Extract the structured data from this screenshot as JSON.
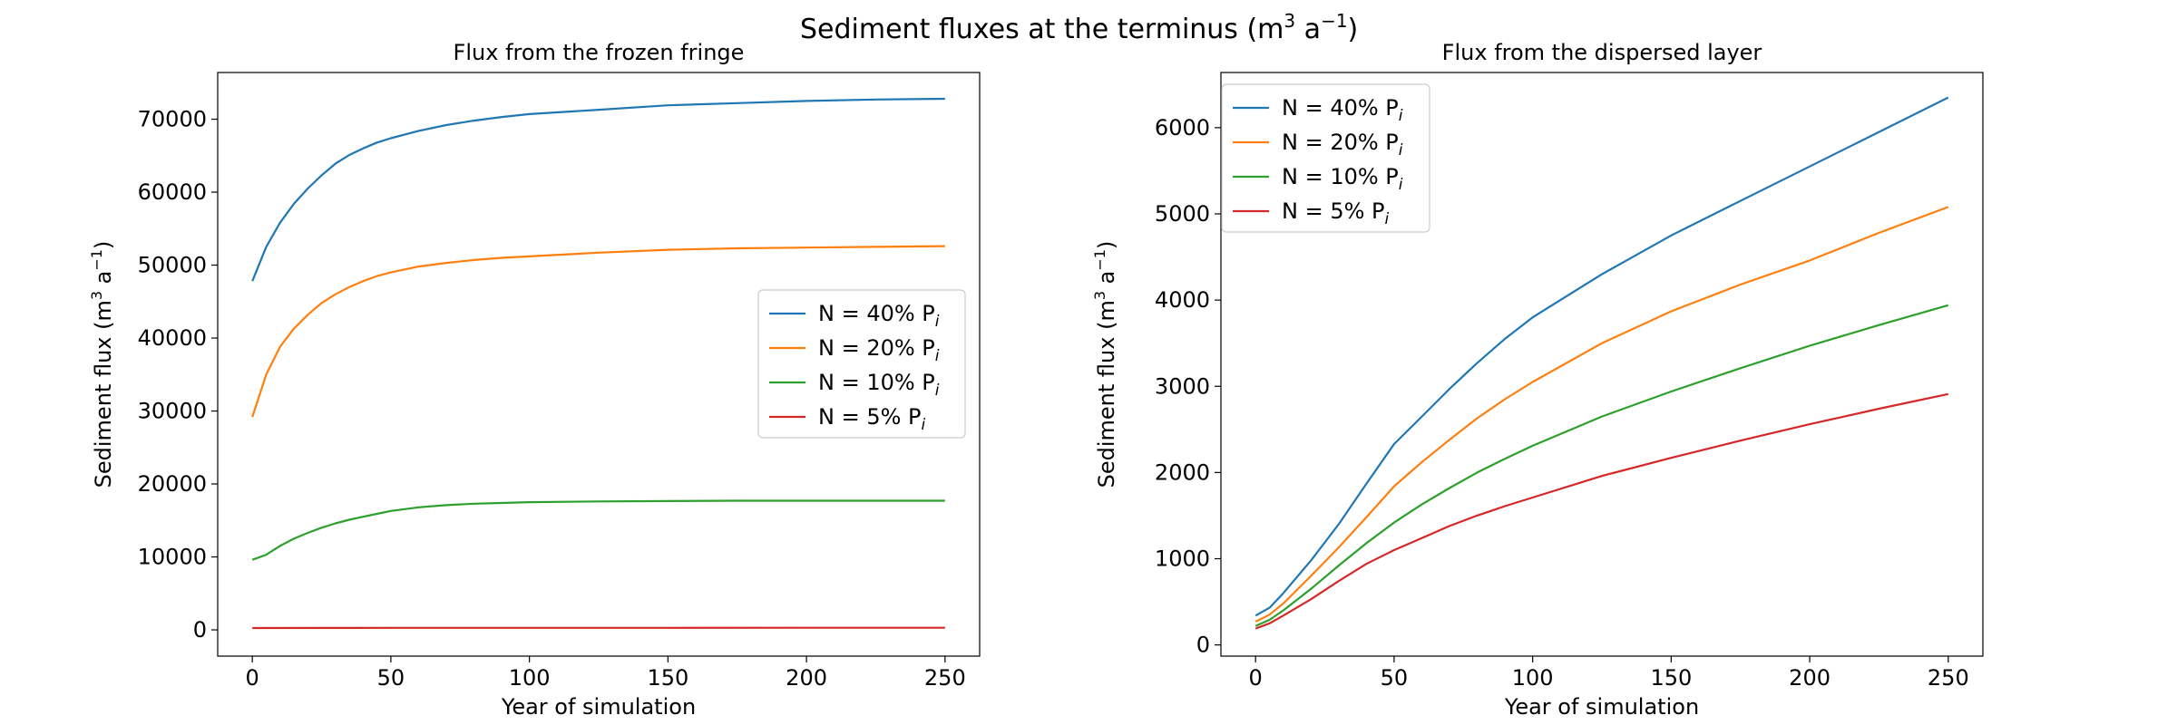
{
  "figure": {
    "title_main": "Sediment fluxes at the terminus (m",
    "title_sup1": "3",
    "title_mid": " a",
    "title_sup2": "−1",
    "title_end": ")"
  },
  "chart_data": [
    {
      "type": "line",
      "title": "Flux from the frozen fringe",
      "xlabel": "Year of simulation",
      "ylabel": {
        "pre": "Sediment flux (m",
        "sup1": "3",
        "mid": " a",
        "sup2": "−1",
        "post": ")"
      },
      "xlim": [
        -12.5,
        262.5
      ],
      "ylim": [
        -3600,
        76400
      ],
      "xticks": [
        0,
        50,
        100,
        150,
        200,
        250
      ],
      "yticks": [
        0,
        10000,
        20000,
        30000,
        40000,
        50000,
        60000,
        70000
      ],
      "grid": false,
      "legend_position": "center-right",
      "series": [
        {
          "name": "N = 40% P",
          "color": "#1f77b4",
          "x": [
            0,
            5,
            10,
            15,
            20,
            25,
            30,
            35,
            40,
            45,
            50,
            60,
            70,
            80,
            90,
            100,
            125,
            150,
            175,
            200,
            225,
            250
          ],
          "y": [
            47800,
            52500,
            55800,
            58400,
            60500,
            62300,
            63900,
            65100,
            66000,
            66800,
            67400,
            68400,
            69200,
            69800,
            70300,
            70700,
            71300,
            71900,
            72200,
            72500,
            72700,
            72800
          ]
        },
        {
          "name": "N = 20% P",
          "color": "#ff7f0e",
          "x": [
            0,
            5,
            10,
            15,
            20,
            25,
            30,
            35,
            40,
            45,
            50,
            60,
            70,
            80,
            90,
            100,
            125,
            150,
            175,
            200,
            225,
            250
          ],
          "y": [
            29200,
            35000,
            38800,
            41300,
            43200,
            44800,
            46000,
            47000,
            47800,
            48500,
            49000,
            49800,
            50300,
            50700,
            51000,
            51200,
            51700,
            52100,
            52300,
            52400,
            52500,
            52600
          ]
        },
        {
          "name": "N = 10% P",
          "color": "#2ca02c",
          "x": [
            0,
            5,
            10,
            15,
            20,
            25,
            30,
            35,
            40,
            45,
            50,
            60,
            70,
            80,
            90,
            100,
            125,
            150,
            175,
            200,
            225,
            250
          ],
          "y": [
            9600,
            10300,
            11500,
            12500,
            13300,
            14000,
            14600,
            15100,
            15500,
            15900,
            16300,
            16800,
            17100,
            17300,
            17400,
            17500,
            17600,
            17650,
            17700,
            17700,
            17700,
            17700
          ]
        },
        {
          "name": "N = 5% P",
          "color": "#d62728",
          "x": [
            0,
            25,
            50,
            100,
            150,
            200,
            250
          ],
          "y": [
            250,
            260,
            270,
            280,
            280,
            285,
            290
          ]
        }
      ]
    },
    {
      "type": "line",
      "title": "Flux from the dispersed layer",
      "xlabel": "Year of simulation",
      "ylabel": {
        "pre": "Sediment flux (m",
        "sup1": "3",
        "mid": " a",
        "sup2": "−1",
        "post": ")"
      },
      "xlim": [
        -12.5,
        262.5
      ],
      "ylim": [
        -130,
        6640
      ],
      "xticks": [
        0,
        50,
        100,
        150,
        200,
        250
      ],
      "yticks": [
        0,
        1000,
        2000,
        3000,
        4000,
        5000,
        6000
      ],
      "grid": false,
      "legend_position": "upper-left",
      "series": [
        {
          "name": "N = 40% P",
          "color": "#1f77b4",
          "x": [
            0,
            5,
            10,
            20,
            30,
            40,
            50,
            60,
            70,
            80,
            90,
            100,
            125,
            150,
            175,
            200,
            225,
            250
          ],
          "y": [
            340,
            430,
            600,
            980,
            1400,
            1870,
            2330,
            2650,
            2970,
            3270,
            3550,
            3800,
            4300,
            4750,
            5150,
            5550,
            5950,
            6350
          ]
        },
        {
          "name": "N = 20% P",
          "color": "#ff7f0e",
          "x": [
            0,
            5,
            10,
            20,
            30,
            40,
            50,
            60,
            70,
            80,
            90,
            100,
            125,
            150,
            175,
            200,
            225,
            250
          ],
          "y": [
            270,
            350,
            480,
            800,
            1130,
            1480,
            1840,
            2120,
            2380,
            2630,
            2850,
            3050,
            3500,
            3870,
            4180,
            4460,
            4780,
            5080
          ]
        },
        {
          "name": "N = 10% P",
          "color": "#2ca02c",
          "x": [
            0,
            5,
            10,
            20,
            30,
            40,
            50,
            60,
            70,
            80,
            90,
            100,
            125,
            150,
            175,
            200,
            225,
            250
          ],
          "y": [
            220,
            290,
            400,
            650,
            920,
            1180,
            1420,
            1630,
            1820,
            2000,
            2160,
            2310,
            2650,
            2940,
            3210,
            3470,
            3710,
            3940
          ]
        },
        {
          "name": "N = 5% P",
          "color": "#d62728",
          "x": [
            0,
            5,
            10,
            20,
            30,
            40,
            50,
            60,
            70,
            80,
            90,
            100,
            125,
            150,
            175,
            200,
            225,
            250
          ],
          "y": [
            190,
            250,
            340,
            530,
            740,
            940,
            1100,
            1240,
            1380,
            1500,
            1610,
            1710,
            1960,
            2170,
            2370,
            2560,
            2740,
            2910
          ]
        }
      ]
    }
  ]
}
